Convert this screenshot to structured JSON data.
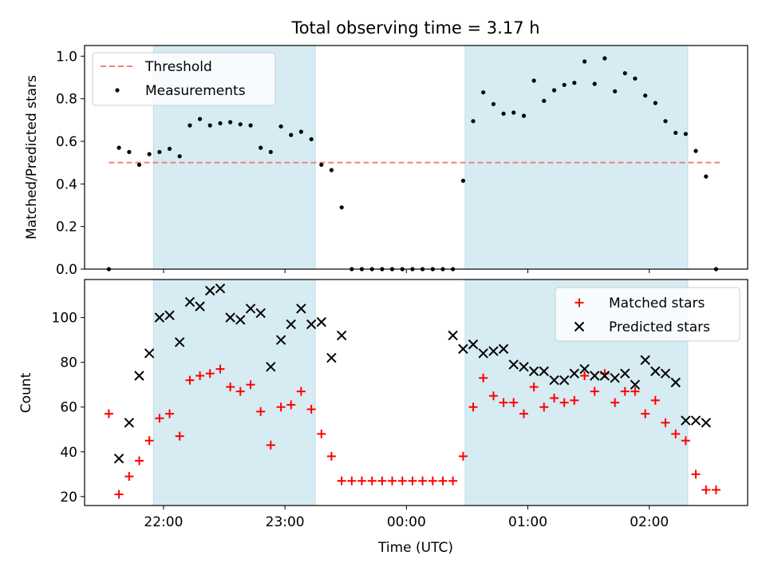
{
  "chart_data": [
    {
      "type": "scatter",
      "title": "Total observing time = 3.17 h",
      "ylabel": "Matched/Predicted stars",
      "xlabel": "",
      "x_range_hours": [
        21.35,
        26.81
      ],
      "ylim": [
        0,
        1.05
      ],
      "yticks": [
        0.0,
        0.2,
        0.4,
        0.6,
        0.8,
        1.0
      ],
      "ytick_labels": [
        "0.0",
        "0.2",
        "0.4",
        "0.6",
        "0.8",
        "1.0"
      ],
      "xticks": [
        22,
        23,
        24,
        25,
        26
      ],
      "legend_position": "upper-left",
      "shaded_intervals": [
        [
          21.917,
          23.25
        ],
        [
          24.483,
          26.317
        ]
      ],
      "threshold": {
        "name": "Threshold",
        "value": 0.5,
        "x_start": 21.55,
        "x_end": 26.58,
        "color": "#f08080"
      },
      "series": [
        {
          "name": "Measurements",
          "color": "#000000",
          "x": [
            21.55,
            21.633,
            21.717,
            21.8,
            21.883,
            21.967,
            22.05,
            22.133,
            22.217,
            22.3,
            22.383,
            22.467,
            22.55,
            22.633,
            22.717,
            22.8,
            22.883,
            22.967,
            23.05,
            23.133,
            23.217,
            23.3,
            23.383,
            23.467,
            23.55,
            23.633,
            23.717,
            23.8,
            23.883,
            23.967,
            24.05,
            24.133,
            24.217,
            24.3,
            24.383,
            24.467,
            24.55,
            24.633,
            24.717,
            24.8,
            24.883,
            24.967,
            25.05,
            25.133,
            25.217,
            25.3,
            25.383,
            25.467,
            25.55,
            25.633,
            25.717,
            25.8,
            25.883,
            25.967,
            26.05,
            26.133,
            26.217,
            26.3,
            26.383,
            26.467,
            26.55
          ],
          "y": [
            0.0,
            0.57,
            0.55,
            0.49,
            0.54,
            0.55,
            0.565,
            0.53,
            0.675,
            0.705,
            0.675,
            0.685,
            0.69,
            0.68,
            0.675,
            0.57,
            0.55,
            0.67,
            0.63,
            0.645,
            0.61,
            0.49,
            0.465,
            0.29,
            0.0,
            0.0,
            0.0,
            0.0,
            0.0,
            0.0,
            0.0,
            0.0,
            0.0,
            0.0,
            0.0,
            0.415,
            0.695,
            0.83,
            0.775,
            0.73,
            0.735,
            0.72,
            0.885,
            0.79,
            0.84,
            0.865,
            0.875,
            0.975,
            0.87,
            0.99,
            0.835,
            0.92,
            0.895,
            0.815,
            0.78,
            0.695,
            0.64,
            0.635,
            0.555,
            0.435,
            0.0
          ]
        }
      ]
    },
    {
      "type": "scatter",
      "title": "",
      "ylabel": "Count",
      "xlabel": "Time (UTC)",
      "x_range_hours": [
        21.35,
        26.81
      ],
      "ylim": [
        16,
        117
      ],
      "yticks": [
        20,
        40,
        60,
        80,
        100
      ],
      "ytick_labels": [
        "20",
        "40",
        "60",
        "80",
        "100"
      ],
      "xticks": [
        22,
        23,
        24,
        25,
        26
      ],
      "xtick_labels": [
        "22:00",
        "23:00",
        "00:00",
        "01:00",
        "02:00"
      ],
      "legend_position": "upper-right",
      "shaded_intervals": [
        [
          21.917,
          23.25
        ],
        [
          24.483,
          26.317
        ]
      ],
      "series": [
        {
          "name": "Matched stars",
          "marker": "plus",
          "color": "#ff0000",
          "x": [
            21.55,
            21.633,
            21.717,
            21.8,
            21.883,
            21.967,
            22.05,
            22.133,
            22.217,
            22.3,
            22.383,
            22.467,
            22.55,
            22.633,
            22.717,
            22.8,
            22.883,
            22.967,
            23.05,
            23.133,
            23.217,
            23.3,
            23.383,
            23.467,
            23.55,
            23.633,
            23.717,
            23.8,
            23.883,
            23.967,
            24.05,
            24.133,
            24.217,
            24.3,
            24.383,
            24.467,
            24.55,
            24.633,
            24.717,
            24.8,
            24.883,
            24.967,
            25.05,
            25.133,
            25.217,
            25.3,
            25.383,
            25.467,
            25.55,
            25.633,
            25.717,
            25.8,
            25.883,
            25.967,
            26.05,
            26.133,
            26.217,
            26.3,
            26.383,
            26.467,
            26.55
          ],
          "y": [
            57,
            21,
            29,
            36,
            45,
            55,
            57,
            47,
            72,
            74,
            75,
            77,
            69,
            67,
            70,
            58,
            43,
            60,
            61,
            67,
            59,
            48,
            38,
            27,
            27,
            27,
            27,
            27,
            27,
            27,
            27,
            27,
            27,
            27,
            27,
            38,
            60,
            73,
            65,
            62,
            62,
            57,
            69,
            60,
            64,
            62,
            63,
            74,
            67,
            75,
            62,
            67,
            67,
            57,
            63,
            53,
            48,
            45,
            30,
            23,
            23
          ]
        },
        {
          "name": "Predicted stars",
          "marker": "x",
          "color": "#000000",
          "x": [
            21.633,
            21.717,
            21.8,
            21.883,
            21.967,
            22.05,
            22.133,
            22.217,
            22.3,
            22.383,
            22.467,
            22.55,
            22.633,
            22.717,
            22.8,
            22.883,
            22.967,
            23.05,
            23.133,
            23.217,
            23.3,
            23.383,
            23.467,
            24.383,
            24.467,
            24.55,
            24.633,
            24.717,
            24.8,
            24.883,
            24.967,
            25.05,
            25.133,
            25.217,
            25.3,
            25.383,
            25.467,
            25.55,
            25.633,
            25.717,
            25.8,
            25.883,
            25.967,
            26.05,
            26.133,
            26.217,
            26.3,
            26.383,
            26.467
          ],
          "y": [
            37,
            53,
            74,
            84,
            100,
            101,
            89,
            107,
            105,
            112,
            113,
            100,
            99,
            104,
            102,
            78,
            90,
            97,
            104,
            97,
            98,
            82,
            92,
            92,
            86,
            88,
            84,
            85,
            86,
            79,
            78,
            76,
            76,
            72,
            72,
            75,
            77,
            74,
            74,
            73,
            75,
            70,
            81,
            76,
            75,
            71,
            54,
            54,
            53
          ]
        }
      ]
    }
  ]
}
